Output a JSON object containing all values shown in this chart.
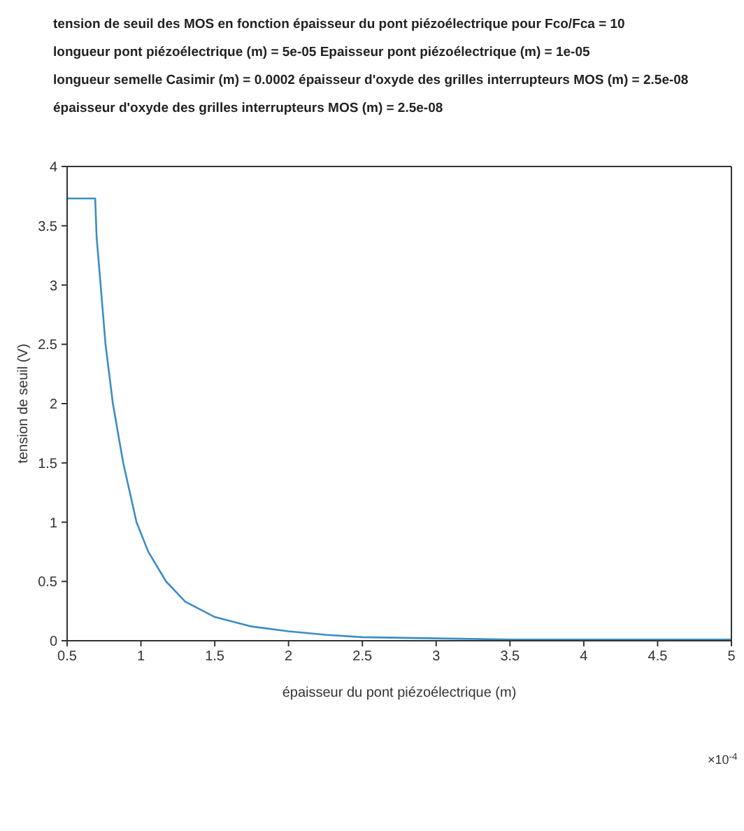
{
  "chart_data": {
    "type": "line",
    "title": "tension de seuil des MOS  en fonction épaisseur du pont piézoélectrique  pour Fco/Fca = 10",
    "annotations": [
      "longueur pont piézoélectrique   (m) = 5e-05   Epaisseur pont piézoélectrique   (m) = 1e-05",
      "longueur semelle Casimir  (m) =   0.0002    épaisseur d'oxyde des grilles interrupteurs MOS  (m) =  2.5e-08",
      "épaisseur d'oxyde des grilles interrupteurs MOS  (m) =  2.5e-08",
      "×10$^{-4}$"
    ],
    "xlabel": "épaisseur du pont piézoélectrique  (m)",
    "ylabel": "tension de seuil (V)",
    "x": [
      0.5,
      0.69,
      0.7,
      0.727,
      0.76,
      0.81,
      0.88,
      0.97,
      1.05,
      1.17,
      1.3,
      1.5,
      1.75,
      2,
      2.25,
      2.5,
      3,
      3.5,
      4,
      4.5,
      5
    ],
    "series": [
      {
        "color": "#3c8dc4",
        "values": [
          3.73,
          3.73,
          3.4,
          3,
          2.5,
          2,
          1.5,
          1,
          0.75,
          0.5,
          0.33,
          0.2,
          0.12,
          0.08,
          0.05,
          0.03,
          0.02,
          0.01,
          0.01,
          0.01,
          0.01
        ]
      }
    ],
    "xlim": [
      0.5,
      5
    ],
    "xticks": [
      0.5,
      1,
      1.5,
      2,
      2.5,
      3,
      3.5,
      4,
      4.5,
      5
    ],
    "ylim": [
      0,
      4
    ],
    "yticks": [
      0,
      0.5,
      1,
      1.5,
      2,
      2.5,
      3,
      3.5,
      4
    ],
    "grid": false,
    "legend": false,
    "marker": "none",
    "line_style": "solid"
  }
}
